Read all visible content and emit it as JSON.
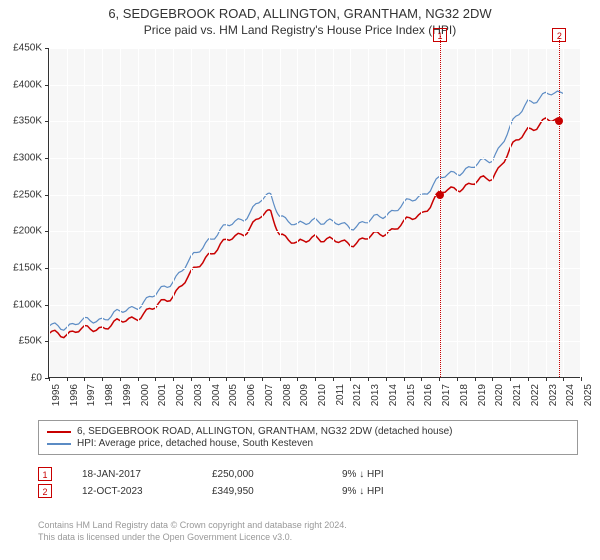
{
  "title1": "6, SEDGEBROOK ROAD, ALLINGTON, GRANTHAM, NG32 2DW",
  "title2": "Price paid vs. HM Land Registry's House Price Index (HPI)",
  "chart": {
    "type": "line",
    "background_color": "#f7f7f7",
    "grid_color": "#ffffff",
    "axis_color": "#333333",
    "ylim": [
      0,
      450000
    ],
    "ytick_step": 50000,
    "yticks": [
      "£0",
      "£50K",
      "£100K",
      "£150K",
      "£200K",
      "£250K",
      "£300K",
      "£350K",
      "£400K",
      "£450K"
    ],
    "xlim": [
      1995,
      2025
    ],
    "xticks": [
      1995,
      1996,
      1997,
      1998,
      1999,
      2000,
      2001,
      2002,
      2003,
      2004,
      2005,
      2006,
      2007,
      2008,
      2009,
      2010,
      2011,
      2012,
      2013,
      2014,
      2015,
      2016,
      2017,
      2018,
      2019,
      2020,
      2021,
      2022,
      2023,
      2024,
      2025
    ],
    "series": [
      {
        "name": "series-property",
        "color": "#c80000",
        "width": 1.5,
        "data": [
          [
            1995,
            60000
          ],
          [
            1996,
            62000
          ],
          [
            1997,
            65000
          ],
          [
            1998,
            70000
          ],
          [
            1999,
            75000
          ],
          [
            2000,
            85000
          ],
          [
            2001,
            95000
          ],
          [
            2002,
            115000
          ],
          [
            2003,
            140000
          ],
          [
            2004,
            170000
          ],
          [
            2005,
            185000
          ],
          [
            2006,
            200000
          ],
          [
            2007,
            220000
          ],
          [
            2007.5,
            225000
          ],
          [
            2008,
            200000
          ],
          [
            2009,
            180000
          ],
          [
            2010,
            195000
          ],
          [
            2011,
            185000
          ],
          [
            2012,
            185000
          ],
          [
            2013,
            190000
          ],
          [
            2014,
            200000
          ],
          [
            2015,
            210000
          ],
          [
            2016,
            225000
          ],
          [
            2017,
            250000
          ],
          [
            2018,
            260000
          ],
          [
            2019,
            265000
          ],
          [
            2020,
            275000
          ],
          [
            2021,
            310000
          ],
          [
            2022,
            340000
          ],
          [
            2023,
            350000
          ],
          [
            2023.78,
            349950
          ]
        ]
      },
      {
        "name": "series-hpi",
        "color": "#5b8bc4",
        "width": 1.2,
        "data": [
          [
            1995,
            70000
          ],
          [
            1996,
            72000
          ],
          [
            1997,
            76000
          ],
          [
            1998,
            82000
          ],
          [
            1999,
            88000
          ],
          [
            2000,
            100000
          ],
          [
            2001,
            112000
          ],
          [
            2002,
            135000
          ],
          [
            2003,
            160000
          ],
          [
            2004,
            190000
          ],
          [
            2005,
            205000
          ],
          [
            2006,
            220000
          ],
          [
            2007,
            242000
          ],
          [
            2007.5,
            248000
          ],
          [
            2008,
            225000
          ],
          [
            2009,
            205000
          ],
          [
            2010,
            218000
          ],
          [
            2011,
            210000
          ],
          [
            2012,
            208000
          ],
          [
            2013,
            212000
          ],
          [
            2014,
            225000
          ],
          [
            2015,
            235000
          ],
          [
            2016,
            250000
          ],
          [
            2017,
            270000
          ],
          [
            2018,
            282000
          ],
          [
            2019,
            288000
          ],
          [
            2020,
            300000
          ],
          [
            2021,
            340000
          ],
          [
            2022,
            378000
          ],
          [
            2023,
            385000
          ],
          [
            2024,
            388000
          ]
        ]
      }
    ],
    "markers": [
      {
        "id": "1",
        "x": 2017.05,
        "price": 250000,
        "color": "#c80000"
      },
      {
        "id": "2",
        "x": 2023.78,
        "price": 349950,
        "color": "#c80000"
      }
    ]
  },
  "legend": [
    {
      "color": "#c80000",
      "label": "6, SEDGEBROOK ROAD, ALLINGTON, GRANTHAM, NG32 2DW (detached house)"
    },
    {
      "color": "#5b8bc4",
      "label": "HPI: Average price, detached house, South Kesteven"
    }
  ],
  "transactions": [
    {
      "id": "1",
      "color": "#c80000",
      "date": "18-JAN-2017",
      "price": "£250,000",
      "delta": "9% ↓ HPI"
    },
    {
      "id": "2",
      "color": "#c80000",
      "date": "12-OCT-2023",
      "price": "£349,950",
      "delta": "9% ↓ HPI"
    }
  ],
  "footer1": "Contains HM Land Registry data © Crown copyright and database right 2024.",
  "footer2": "This data is licensed under the Open Government Licence v3.0."
}
